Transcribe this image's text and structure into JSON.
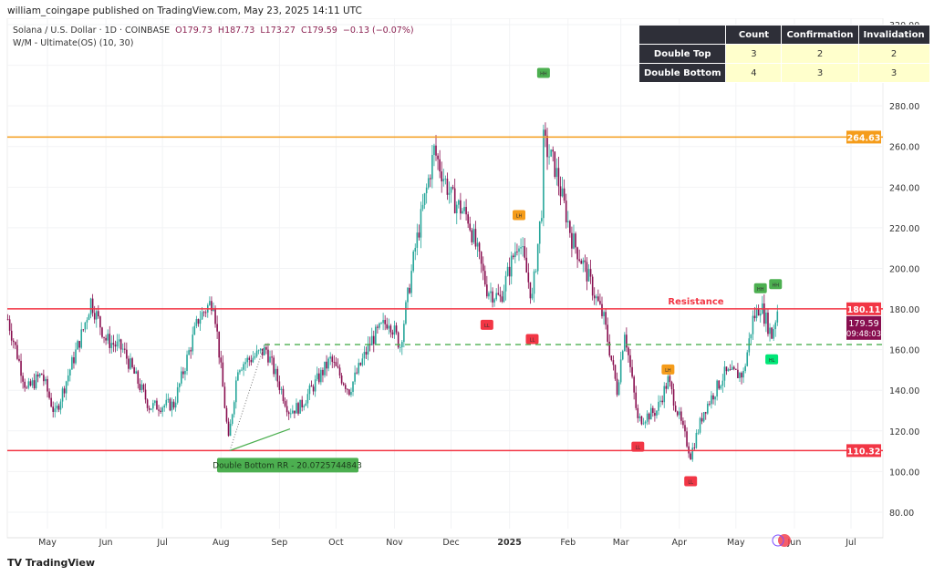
{
  "header": {
    "published": "william_coingape published on TradingView.com, May 23, 2025 14:11 UTC",
    "symbol": "Solana / U.S. Dollar · 1D · COINBASE",
    "open": "O179.73",
    "high": "H187.73",
    "low": "L173.27",
    "close": "C179.59",
    "change": "−0.13 (−0.07%)",
    "indicator": "W/M - Ultimate(OS) (10, 30)"
  },
  "table": {
    "headers": [
      "",
      "Count",
      "Confirmation",
      "Invalidation"
    ],
    "rows": [
      {
        "label": "Double Top",
        "values": [
          "3",
          "2",
          "2"
        ]
      },
      {
        "label": "Double Bottom",
        "values": [
          "4",
          "3",
          "3"
        ]
      }
    ]
  },
  "brand": "TradingView",
  "colors": {
    "up": "#26a69a",
    "down": "#880e4f",
    "resistance": "#f23645",
    "orange": "#f59c1a",
    "green": "#4caf50"
  },
  "chart_data": {
    "type": "candlestick",
    "ylim": [
      80,
      320
    ],
    "y_ticks": [
      "320.00",
      "300.00",
      "280.00",
      "260.00",
      "240.00",
      "220.00",
      "200.00",
      "180.00",
      "160.00",
      "140.00",
      "120.00",
      "100.00",
      "80.00"
    ],
    "x_ticks": [
      "May",
      "Jun",
      "Jul",
      "Aug",
      "Sep",
      "Oct",
      "Nov",
      "Dec",
      "2025",
      "Feb",
      "Mar",
      "Apr",
      "May",
      "Jun",
      "Jul"
    ],
    "waypoints": [
      [
        "2024-04-10",
        175
      ],
      [
        "2024-04-20",
        140
      ],
      [
        "2024-04-28",
        148
      ],
      [
        "2024-05-05",
        128
      ],
      [
        "2024-05-20",
        170
      ],
      [
        "2024-05-24",
        184
      ],
      [
        "2024-06-01",
        165
      ],
      [
        "2024-06-10",
        160
      ],
      [
        "2024-06-24",
        132
      ],
      [
        "2024-07-07",
        133
      ],
      [
        "2024-07-20",
        175
      ],
      [
        "2024-07-28",
        185
      ],
      [
        "2024-08-05",
        115
      ],
      [
        "2024-08-10",
        152
      ],
      [
        "2024-08-25",
        160
      ],
      [
        "2024-09-06",
        130
      ],
      [
        "2024-09-12",
        132
      ],
      [
        "2024-09-28",
        155
      ],
      [
        "2024-10-08",
        140
      ],
      [
        "2024-10-20",
        165
      ],
      [
        "2024-10-29",
        175
      ],
      [
        "2024-11-04",
        162
      ],
      [
        "2024-11-12",
        210
      ],
      [
        "2024-11-22",
        258
      ],
      [
        "2024-12-01",
        235
      ],
      [
        "2024-12-10",
        225
      ],
      [
        "2024-12-20",
        190
      ],
      [
        "2024-12-27",
        185
      ],
      [
        "2025-01-06",
        215
      ],
      [
        "2025-01-13",
        185
      ],
      [
        "2025-01-18",
        230
      ],
      [
        "2025-01-19",
        262
      ],
      [
        "2025-01-25",
        250
      ],
      [
        "2025-02-03",
        215
      ],
      [
        "2025-02-10",
        200
      ],
      [
        "2025-02-20",
        175
      ],
      [
        "2025-02-27",
        140
      ],
      [
        "2025-03-03",
        170
      ],
      [
        "2025-03-10",
        125
      ],
      [
        "2025-03-20",
        130
      ],
      [
        "2025-03-26",
        145
      ],
      [
        "2025-04-07",
        108
      ],
      [
        "2025-04-14",
        130
      ],
      [
        "2025-04-25",
        148
      ],
      [
        "2025-05-05",
        148
      ],
      [
        "2025-05-10",
        175
      ],
      [
        "2025-05-14",
        182
      ],
      [
        "2025-05-20",
        167
      ],
      [
        "2025-05-23",
        179.59
      ]
    ],
    "levels": [
      {
        "price": 264.63,
        "label": "264.63",
        "color": "#f59c1a"
      },
      {
        "price": 180.11,
        "label": "180.11",
        "color": "#f23645",
        "name": "Resistance"
      },
      {
        "price": 110.32,
        "label": "110.32",
        "color": "#f23645"
      }
    ],
    "neckline": 162.5,
    "last_price": "179.59",
    "countdown": "09:48:03",
    "annotation": "Double Bottom RR - 20.0725744843",
    "markers": [
      {
        "date": "2025-01-19",
        "price": 296,
        "label": "HH",
        "type": "top"
      },
      {
        "date": "2025-01-06",
        "price": 226,
        "label": "LH",
        "type": "lh"
      },
      {
        "date": "2024-12-20",
        "price": 172,
        "label": "LL",
        "type": "low"
      },
      {
        "date": "2025-01-13",
        "price": 165,
        "label": "LL",
        "type": "low"
      },
      {
        "date": "2025-05-14",
        "price": 190,
        "label": "HH",
        "type": "top"
      },
      {
        "date": "2025-05-22",
        "price": 192,
        "label": "HH",
        "type": "top"
      },
      {
        "date": "2025-05-20",
        "price": 155,
        "label": "HL",
        "type": "hl"
      },
      {
        "date": "2025-03-26",
        "price": 150,
        "label": "LH",
        "type": "lh"
      },
      {
        "date": "2025-03-10",
        "price": 112,
        "label": "LL",
        "type": "low"
      },
      {
        "date": "2025-04-07",
        "price": 95,
        "label": "LL",
        "type": "low"
      }
    ]
  }
}
